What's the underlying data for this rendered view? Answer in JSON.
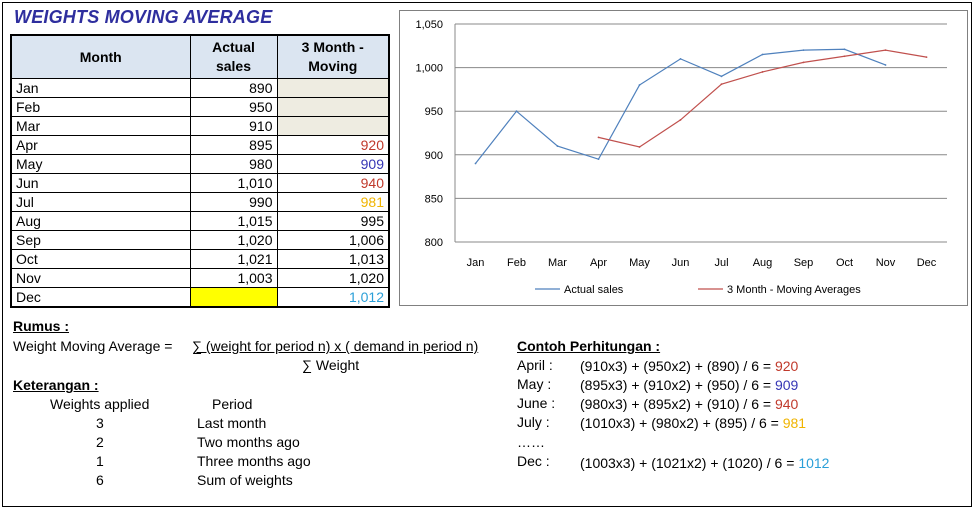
{
  "title": "WEIGHTS MOVING AVERAGE",
  "table": {
    "headers": {
      "month": "Month",
      "actual_line1": "Actual",
      "actual_line2": "sales",
      "moving_line1": "3 Month -",
      "moving_line2": "Moving"
    },
    "rows": [
      {
        "month": "Jan",
        "actual": "890",
        "moving": "",
        "moving_color": "#000000",
        "moving_bg": "beige"
      },
      {
        "month": "Feb",
        "actual": "950",
        "moving": "",
        "moving_color": "#000000",
        "moving_bg": "beige"
      },
      {
        "month": "Mar",
        "actual": "910",
        "moving": "",
        "moving_color": "#000000",
        "moving_bg": "beige"
      },
      {
        "month": "Apr",
        "actual": "895",
        "moving": "920",
        "moving_color": "#c0392b",
        "moving_bg": ""
      },
      {
        "month": "May",
        "actual": "980",
        "moving": "909",
        "moving_color": "#3535b5",
        "moving_bg": ""
      },
      {
        "month": "Jun",
        "actual": "1,010",
        "moving": "940",
        "moving_color": "#c0392b",
        "moving_bg": ""
      },
      {
        "month": "Jul",
        "actual": "990",
        "moving": "981",
        "moving_color": "#f0b400",
        "moving_bg": ""
      },
      {
        "month": "Aug",
        "actual": "1,015",
        "moving": "995",
        "moving_color": "#000000",
        "moving_bg": ""
      },
      {
        "month": "Sep",
        "actual": "1,020",
        "moving": "1,006",
        "moving_color": "#000000",
        "moving_bg": ""
      },
      {
        "month": "Oct",
        "actual": "1,021",
        "moving": "1,013",
        "moving_color": "#000000",
        "moving_bg": ""
      },
      {
        "month": "Nov",
        "actual": "1,003",
        "moving": "1,020",
        "moving_color": "#000000",
        "moving_bg": ""
      },
      {
        "month": "Dec",
        "actual": "",
        "moving": "1,012",
        "moving_color": "#2a9fd8",
        "moving_bg": "",
        "actual_bg": "yellow"
      }
    ]
  },
  "chart_data": {
    "type": "line",
    "categories": [
      "Jan",
      "Feb",
      "Mar",
      "Apr",
      "May",
      "Jun",
      "Jul",
      "Aug",
      "Sep",
      "Oct",
      "Nov",
      "Dec"
    ],
    "series": [
      {
        "name": "Actual sales",
        "color": "#4f81bd",
        "values": [
          890,
          950,
          910,
          895,
          980,
          1010,
          990,
          1015,
          1020,
          1021,
          1003,
          null
        ]
      },
      {
        "name": "3 Month - Moving Averages",
        "color": "#c0504d",
        "values": [
          null,
          null,
          null,
          920,
          909,
          940,
          981,
          995,
          1006,
          1013,
          1020,
          1012
        ]
      }
    ],
    "ylim": [
      800,
      1050
    ],
    "yticks": [
      "800",
      "850",
      "900",
      "950",
      "1,000",
      "1,050"
    ],
    "ytick_values": [
      800,
      850,
      900,
      950,
      1000,
      1050
    ],
    "grid": true,
    "legend": "bottom"
  },
  "formula": {
    "heading": "Rumus :",
    "label": "Weight Moving Average =",
    "numerator": "∑ (weight for period n) x ( demand in period n)",
    "denominator": "∑ Weight"
  },
  "notes": {
    "heading": "Keterangan :",
    "col1": "Weights applied",
    "col2": "Period",
    "rows": [
      {
        "weight": "3",
        "period": "Last month"
      },
      {
        "weight": "2",
        "period": "Two months ago"
      },
      {
        "weight": "1",
        "period": "Three months ago"
      },
      {
        "weight": "6",
        "period": "Sum of weights"
      }
    ]
  },
  "example": {
    "heading": "Contoh Perhitungan :",
    "rows": [
      {
        "label": "April :",
        "expr": "(910x3) + (950x2) + (890) / 6 = ",
        "result": "920",
        "color": "#c0392b"
      },
      {
        "label": "May :",
        "expr": "(895x3) + (910x2) + (950) / 6 = ",
        "result": "909",
        "color": "#3535b5"
      },
      {
        "label": "June :",
        "expr": "(980x3) + (895x2) + (910) / 6 = ",
        "result": "940",
        "color": "#c0392b"
      },
      {
        "label": "July :",
        "expr": "(1010x3) + (980x2) + (895) / 6 = ",
        "result": "981",
        "color": "#f0b400"
      }
    ],
    "ellipsis": "……",
    "dec": {
      "label": "Dec :",
      "expr": "(1003x3) + (1021x2) + (1020) / 6 = ",
      "result": "1012",
      "color": "#2a9fd8"
    }
  }
}
